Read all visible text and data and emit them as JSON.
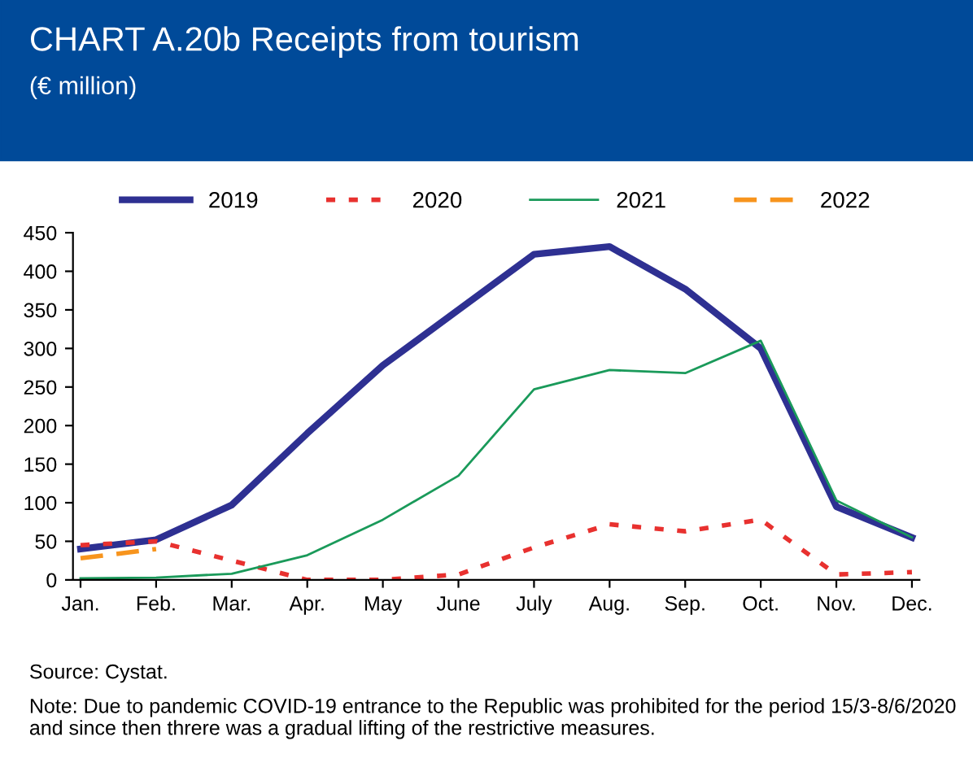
{
  "chart_data": {
    "type": "line",
    "title": "CHART A.20b Receipts from tourism",
    "subtitle": "(€ million)",
    "categories": [
      "Jan.",
      "Feb.",
      "Mar.",
      "Apr.",
      "May",
      "June",
      "July",
      "Aug.",
      "Sep.",
      "Oct.",
      "Nov.",
      "Dec."
    ],
    "series": [
      {
        "name": "2019",
        "color": "#2e3092",
        "line_style": "solid",
        "values": [
          40,
          52,
          97,
          190,
          278,
          350,
          422,
          432,
          377,
          300,
          95,
          55
        ]
      },
      {
        "name": "2020",
        "color": "#e8312f",
        "line_style": "dotted",
        "values": [
          45,
          50,
          25,
          0,
          0,
          7,
          42,
          72,
          63,
          78,
          7,
          10
        ]
      },
      {
        "name": "2021",
        "color": "#1a9a5a",
        "line_style": "solid",
        "values": [
          2,
          3,
          8,
          32,
          78,
          135,
          247,
          272,
          268,
          310,
          103,
          55
        ]
      },
      {
        "name": "2022",
        "color": "#f7941d",
        "line_style": "dashed",
        "values": [
          28,
          40,
          null,
          null,
          null,
          null,
          null,
          null,
          null,
          null,
          null,
          null
        ]
      }
    ],
    "ylim": [
      0,
      450
    ],
    "yticks": [
      0,
      50,
      100,
      150,
      200,
      250,
      300,
      350,
      400,
      450
    ],
    "grid": false,
    "legend": "top",
    "marker": "none",
    "annotations": [
      "Source: Cystat.",
      "Note: Due to pandemic COVID-19 entrance to the Republic was prohibited for the period 15/3-8/6/2020 and since then threre was a gradual lifting of the restrictive measures."
    ]
  }
}
